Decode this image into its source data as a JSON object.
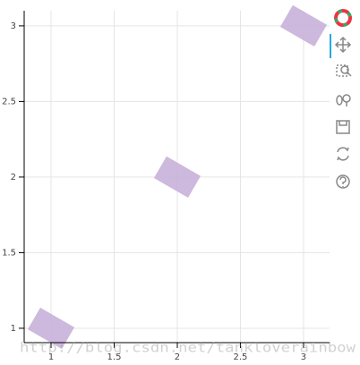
{
  "chart_data": {
    "type": "scatter",
    "marker": "rect",
    "x": [
      1,
      2,
      3
    ],
    "series": [
      {
        "color": "#c8b0da",
        "values": [
          1,
          2,
          3
        ]
      }
    ],
    "xlim": [
      0.787,
      3.206
    ],
    "ylim": [
      0.905,
      3.1
    ],
    "xticks": [
      1,
      1.5,
      2,
      2.5,
      3
    ],
    "yticks": [
      1,
      1.5,
      2,
      2.5,
      3
    ],
    "grid": true
  },
  "watermark": "http://blog.csdn.net/tankloverainbow"
}
